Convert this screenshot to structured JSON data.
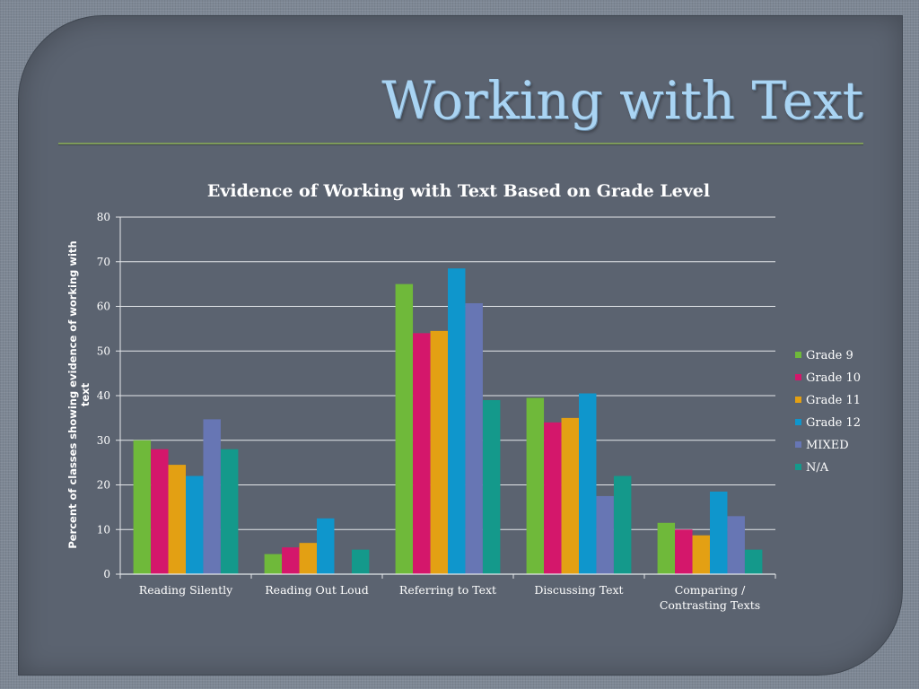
{
  "slide": {
    "title": "Working with Text"
  },
  "chart_data": {
    "type": "bar",
    "title": "Evidence of Working with Text Based on Grade Level",
    "xlabel": "",
    "ylabel": "Percent of classes  showing evidence of working with text",
    "ylim": [
      0,
      80
    ],
    "yticks": [
      0,
      10,
      20,
      30,
      40,
      50,
      60,
      70,
      80
    ],
    "grid": true,
    "legend_position": "right",
    "categories": [
      "Reading Silently",
      "Reading Out Loud",
      "Referring to Text",
      "Discussing Text",
      "Comparing / Contrasting Texts"
    ],
    "series": [
      {
        "name": "Grade 9",
        "color": "#6fb93a",
        "values": [
          30,
          4.5,
          65,
          39.5,
          11.5
        ]
      },
      {
        "name": "Grade 10",
        "color": "#d4176b",
        "values": [
          28,
          6,
          54,
          34,
          10
        ]
      },
      {
        "name": "Grade 11",
        "color": "#e3a013",
        "values": [
          24.5,
          7,
          54.5,
          35,
          8.7
        ]
      },
      {
        "name": "Grade 12",
        "color": "#0f96cc",
        "values": [
          22,
          12.5,
          68.5,
          40.5,
          18.5
        ]
      },
      {
        "name": "MIXED",
        "color": "#6776b4",
        "values": [
          34.7,
          0,
          60.7,
          17.5,
          13
        ]
      },
      {
        "name": "N/A",
        "color": "#14998b",
        "values": [
          28,
          5.5,
          39,
          22,
          5.5
        ]
      }
    ]
  }
}
